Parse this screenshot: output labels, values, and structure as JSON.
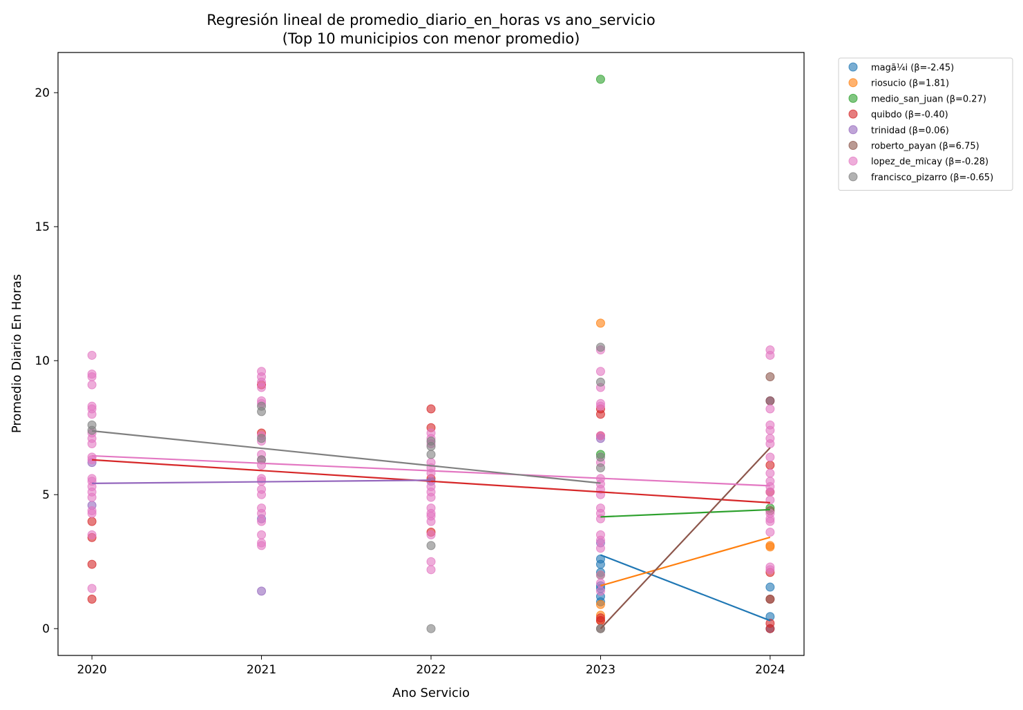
{
  "chart_data": {
    "type": "scatter",
    "title": "Regresión lineal de promedio_diario_en_horas vs ano_servicio",
    "subtitle": "(Top 10 municipios con menor promedio)",
    "xlabel": "Ano Servicio",
    "ylabel": "Promedio Diario En Horas",
    "xlim": [
      2019.8,
      2024.2
    ],
    "ylim": [
      -1,
      21.5
    ],
    "xticks": [
      2020,
      2021,
      2022,
      2023,
      2024
    ],
    "yticks": [
      0,
      5,
      10,
      15,
      20
    ],
    "legend_position": "outside-top-right",
    "series": [
      {
        "name": "magã¼i",
        "legend": "magã¼i (β=-2.45)",
        "color": "#1f77b4",
        "points": [
          [
            2023,
            2.6
          ],
          [
            2023,
            2.4
          ],
          [
            2023,
            2.1
          ],
          [
            2023,
            1.6
          ],
          [
            2023,
            1.5
          ],
          [
            2023,
            1.2
          ],
          [
            2023,
            1.0
          ],
          [
            2024,
            1.55
          ],
          [
            2024,
            0.45
          ],
          [
            2024,
            0.0
          ]
        ],
        "line": [
          [
            2023,
            2.75
          ],
          [
            2024,
            0.3
          ]
        ]
      },
      {
        "name": "riosucio",
        "legend": "riosucio (β=1.81)",
        "color": "#ff7f0e",
        "points": [
          [
            2023,
            11.4
          ],
          [
            2023,
            0.9
          ],
          [
            2023,
            0.5
          ],
          [
            2023,
            0.3
          ],
          [
            2024,
            3.1
          ],
          [
            2024,
            3.05
          ]
        ],
        "line": [
          [
            2023,
            1.6
          ],
          [
            2024,
            3.41
          ]
        ]
      },
      {
        "name": "medio_san_juan",
        "legend": "medio_san_juan (β=0.27)",
        "color": "#2ca02c",
        "points": [
          [
            2023,
            20.5
          ],
          [
            2023,
            6.5
          ],
          [
            2023,
            2.0
          ],
          [
            2024,
            4.5
          ]
        ],
        "line": [
          [
            2023,
            4.17
          ],
          [
            2024,
            4.44
          ]
        ]
      },
      {
        "name": "quibdo",
        "legend": "quibdo (β=-0.40)",
        "color": "#d62728",
        "points": [
          [
            2020,
            4.0
          ],
          [
            2020,
            3.4
          ],
          [
            2020,
            2.4
          ],
          [
            2020,
            1.1
          ],
          [
            2021,
            9.1
          ],
          [
            2021,
            7.3
          ],
          [
            2022,
            8.2
          ],
          [
            2022,
            7.5
          ],
          [
            2022,
            5.6
          ],
          [
            2022,
            3.6
          ],
          [
            2023,
            8.2
          ],
          [
            2023,
            8.0
          ],
          [
            2023,
            7.2
          ],
          [
            2023,
            0.4
          ],
          [
            2023,
            0.3
          ],
          [
            2024,
            6.1
          ],
          [
            2024,
            5.1
          ],
          [
            2024,
            2.1
          ],
          [
            2024,
            1.1
          ],
          [
            2024,
            0.2
          ],
          [
            2024,
            0.0
          ]
        ],
        "line": [
          [
            2020,
            6.3
          ],
          [
            2024,
            4.7
          ]
        ]
      },
      {
        "name": "trinidad",
        "legend": "trinidad (β=0.06)",
        "color": "#9467bd",
        "points": [
          [
            2020,
            4.6
          ],
          [
            2020,
            6.2
          ],
          [
            2021,
            4.1
          ],
          [
            2021,
            1.4
          ],
          [
            2022,
            5.5
          ],
          [
            2023,
            7.1
          ],
          [
            2023,
            3.2
          ],
          [
            2024,
            8.5
          ]
        ],
        "line": [
          [
            2020,
            5.42
          ],
          [
            2022,
            5.54
          ]
        ]
      },
      {
        "name": "roberto_payan",
        "legend": "roberto_payan (β=6.75)",
        "color": "#8c564b",
        "points": [
          [
            2023,
            0.0
          ],
          [
            2024,
            9.4
          ],
          [
            2024,
            8.5
          ],
          [
            2024,
            4.4
          ],
          [
            2024,
            1.1
          ]
        ],
        "line": [
          [
            2023,
            0.0
          ],
          [
            2024,
            6.75
          ]
        ]
      },
      {
        "name": "lopez_de_micay",
        "legend": "lopez_de_micay (β=-0.28)",
        "color": "#e377c2",
        "points": [
          [
            2020,
            10.2
          ],
          [
            2020,
            9.5
          ],
          [
            2020,
            9.4
          ],
          [
            2020,
            9.1
          ],
          [
            2020,
            8.3
          ],
          [
            2020,
            8.2
          ],
          [
            2020,
            8.0
          ],
          [
            2020,
            7.3
          ],
          [
            2020,
            7.1
          ],
          [
            2020,
            6.9
          ],
          [
            2020,
            6.4
          ],
          [
            2020,
            6.3
          ],
          [
            2020,
            5.6
          ],
          [
            2020,
            5.5
          ],
          [
            2020,
            5.3
          ],
          [
            2020,
            5.1
          ],
          [
            2020,
            4.9
          ],
          [
            2020,
            4.4
          ],
          [
            2020,
            4.3
          ],
          [
            2020,
            3.5
          ],
          [
            2020,
            1.5
          ],
          [
            2021,
            9.6
          ],
          [
            2021,
            9.4
          ],
          [
            2021,
            9.2
          ],
          [
            2021,
            9.0
          ],
          [
            2021,
            8.5
          ],
          [
            2021,
            8.4
          ],
          [
            2021,
            7.2
          ],
          [
            2021,
            7.0
          ],
          [
            2021,
            6.5
          ],
          [
            2021,
            6.3
          ],
          [
            2021,
            6.1
          ],
          [
            2021,
            5.6
          ],
          [
            2021,
            5.5
          ],
          [
            2021,
            5.2
          ],
          [
            2021,
            5.0
          ],
          [
            2021,
            4.5
          ],
          [
            2021,
            4.3
          ],
          [
            2021,
            4.0
          ],
          [
            2021,
            3.5
          ],
          [
            2021,
            3.2
          ],
          [
            2021,
            3.1
          ],
          [
            2022,
            7.3
          ],
          [
            2022,
            7.1
          ],
          [
            2022,
            6.9
          ],
          [
            2022,
            6.2
          ],
          [
            2022,
            6.0
          ],
          [
            2022,
            5.8
          ],
          [
            2022,
            5.3
          ],
          [
            2022,
            5.1
          ],
          [
            2022,
            4.9
          ],
          [
            2022,
            4.5
          ],
          [
            2022,
            4.3
          ],
          [
            2022,
            4.2
          ],
          [
            2022,
            4.0
          ],
          [
            2022,
            3.5
          ],
          [
            2022,
            2.5
          ],
          [
            2022,
            2.2
          ],
          [
            2023,
            10.4
          ],
          [
            2023,
            9.6
          ],
          [
            2023,
            9.0
          ],
          [
            2023,
            8.4
          ],
          [
            2023,
            8.3
          ],
          [
            2023,
            7.2
          ],
          [
            2023,
            6.2
          ],
          [
            2023,
            5.6
          ],
          [
            2023,
            5.4
          ],
          [
            2023,
            5.2
          ],
          [
            2023,
            5.0
          ],
          [
            2023,
            4.5
          ],
          [
            2023,
            4.3
          ],
          [
            2023,
            4.1
          ],
          [
            2023,
            3.5
          ],
          [
            2023,
            3.3
          ],
          [
            2023,
            3.0
          ],
          [
            2023,
            2.0
          ],
          [
            2023,
            1.7
          ],
          [
            2023,
            1.4
          ],
          [
            2024,
            10.4
          ],
          [
            2024,
            10.2
          ],
          [
            2024,
            8.2
          ],
          [
            2024,
            7.6
          ],
          [
            2024,
            7.4
          ],
          [
            2024,
            7.1
          ],
          [
            2024,
            6.9
          ],
          [
            2024,
            6.4
          ],
          [
            2024,
            5.8
          ],
          [
            2024,
            5.5
          ],
          [
            2024,
            5.3
          ],
          [
            2024,
            5.1
          ],
          [
            2024,
            4.8
          ],
          [
            2024,
            4.3
          ],
          [
            2024,
            4.1
          ],
          [
            2024,
            4.0
          ],
          [
            2024,
            3.6
          ],
          [
            2024,
            2.3
          ],
          [
            2024,
            2.2
          ]
        ],
        "line": [
          [
            2020,
            6.45
          ],
          [
            2024,
            5.33
          ]
        ]
      },
      {
        "name": "francisco_pizarro",
        "legend": "francisco_pizarro (β=-0.65)",
        "color": "#7f7f7f",
        "points": [
          [
            2020,
            7.6
          ],
          [
            2020,
            7.4
          ],
          [
            2021,
            8.3
          ],
          [
            2021,
            8.1
          ],
          [
            2021,
            7.1
          ],
          [
            2021,
            6.3
          ],
          [
            2022,
            7.0
          ],
          [
            2022,
            6.8
          ],
          [
            2022,
            6.5
          ],
          [
            2022,
            3.1
          ],
          [
            2022,
            0.0
          ],
          [
            2023,
            10.5
          ],
          [
            2023,
            9.2
          ],
          [
            2023,
            6.4
          ],
          [
            2023,
            6.0
          ],
          [
            2023,
            0.0
          ]
        ],
        "line": [
          [
            2020,
            7.38
          ],
          [
            2023,
            5.43
          ]
        ]
      }
    ]
  }
}
